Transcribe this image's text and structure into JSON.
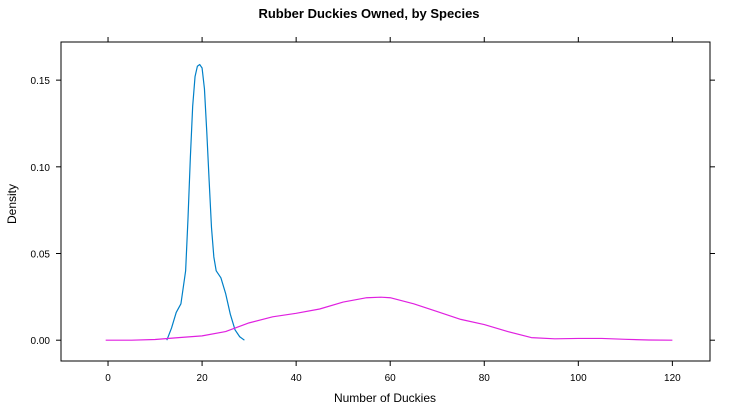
{
  "chart_data": {
    "type": "line",
    "title": "Rubber Duckies Owned, by Species",
    "xlabel": "Number of Duckies",
    "ylabel": "Density",
    "xlim": [
      -10,
      128
    ],
    "ylim": [
      -0.012,
      0.172
    ],
    "x_ticks": [
      0,
      20,
      40,
      60,
      80,
      100,
      120
    ],
    "y_ticks": [
      0.0,
      0.05,
      0.1,
      0.15
    ],
    "x_tick_labels": [
      "0",
      "20",
      "40",
      "60",
      "80",
      "100",
      "120"
    ],
    "y_tick_labels": [
      "0.00",
      "0.05",
      "0.10",
      "0.15"
    ],
    "grid": false,
    "legend": "none",
    "series": [
      {
        "color": "#0080c8",
        "x": [
          12.5,
          13.5,
          14.5,
          15.5,
          16.5,
          17.0,
          17.5,
          18.0,
          18.5,
          19.0,
          19.5,
          20.0,
          20.5,
          21.0,
          21.5,
          22.0,
          22.5,
          23.0,
          23.5,
          24.0,
          25.0,
          26.0,
          27.0,
          28.0,
          29.0
        ],
        "y": [
          0.0,
          0.007,
          0.016,
          0.021,
          0.04,
          0.07,
          0.105,
          0.135,
          0.152,
          0.158,
          0.159,
          0.157,
          0.145,
          0.12,
          0.092,
          0.065,
          0.048,
          0.04,
          0.038,
          0.036,
          0.027,
          0.015,
          0.006,
          0.002,
          0.0
        ]
      },
      {
        "color": "#e020e0",
        "x": [
          -0.5,
          5,
          10,
          15,
          20,
          25,
          30,
          35,
          40,
          45,
          50,
          55,
          58,
          60,
          65,
          70,
          75,
          80,
          85,
          90,
          95,
          100,
          105,
          110,
          115,
          120
        ],
        "y": [
          0.0,
          0.0,
          0.0004,
          0.0015,
          0.0025,
          0.005,
          0.01,
          0.0135,
          0.0155,
          0.018,
          0.022,
          0.0245,
          0.0248,
          0.0245,
          0.021,
          0.0165,
          0.012,
          0.009,
          0.005,
          0.0015,
          0.0008,
          0.001,
          0.001,
          0.0005,
          0.0001,
          0.0
        ]
      }
    ]
  }
}
